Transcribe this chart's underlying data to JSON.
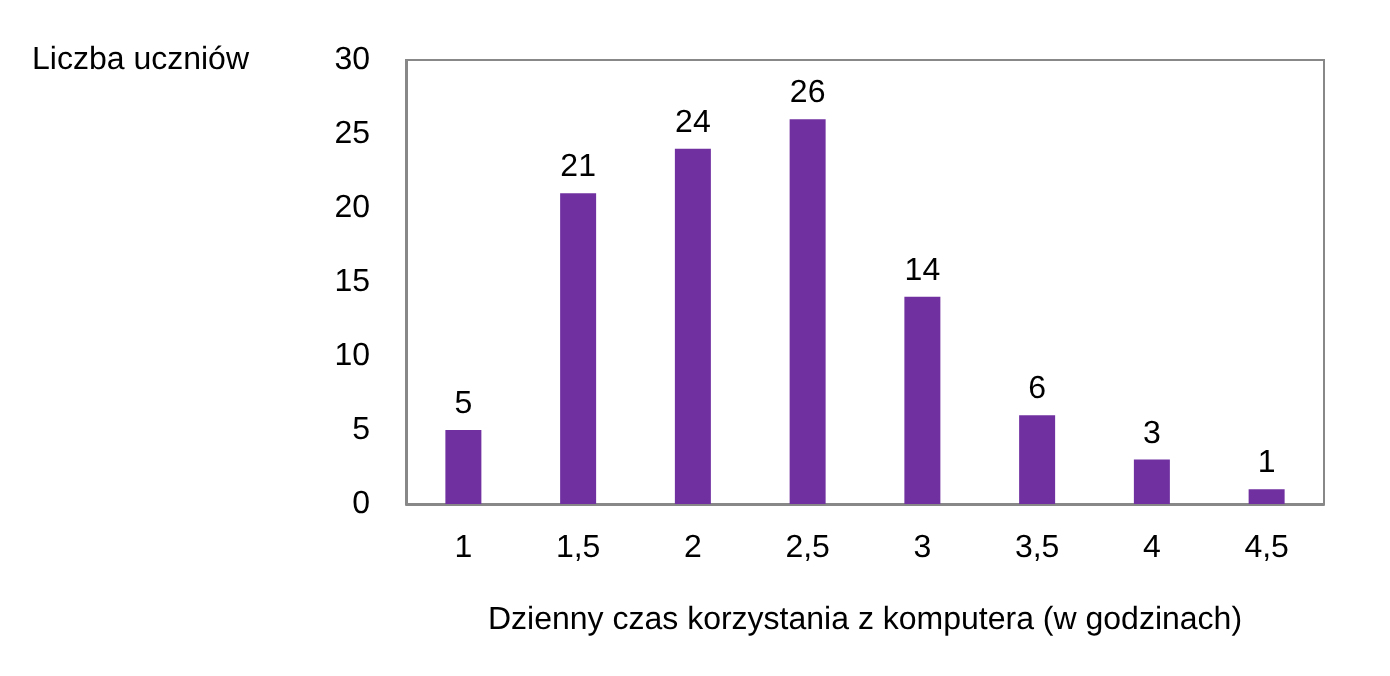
{
  "chart_data": {
    "type": "bar",
    "xlabel": "Dzienny czas korzystania z komputera (w godzinach)",
    "ylabel": "Liczba uczniów",
    "categories": [
      "1",
      "1,5",
      "2",
      "2,5",
      "3",
      "3,5",
      "4",
      "4,5"
    ],
    "values": [
      5,
      21,
      24,
      26,
      14,
      6,
      3,
      1
    ],
    "color": "#7030a0",
    "ylim": [
      0,
      30
    ],
    "yticks": [
      0,
      5,
      10,
      15,
      20,
      25,
      30
    ],
    "grid": false,
    "data_labels": true
  }
}
